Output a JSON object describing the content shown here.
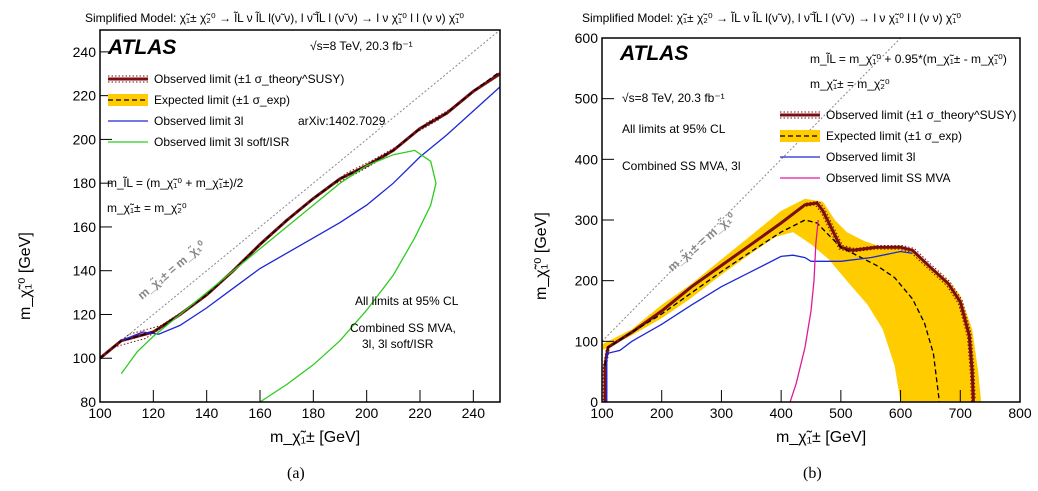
{
  "chart_data": [
    {
      "type": "line",
      "panel_label": "(a)",
      "title": "Simplified Model: χ̃₁± χ̃₂⁰ → l̃L ν l̃L l(ν̃ ν), l ν̃ l̃L l (ν̃ ν) → l ν χ̃₁⁰ l l (ν ν) χ̃₁⁰",
      "xlabel": "m_χ̃₁± [GeV]",
      "ylabel": "m_χ̃₁⁰ [GeV]",
      "xlim": [
        100,
        250
      ],
      "ylim": [
        80,
        250
      ],
      "x_ticks": [
        "100",
        "120",
        "140",
        "160",
        "180",
        "200",
        "220",
        "240"
      ],
      "y_ticks": [
        "80",
        "100",
        "120",
        "140",
        "160",
        "180",
        "200",
        "220",
        "240"
      ],
      "experiment": "ATLAS",
      "energy_lumi": "√s=8 TeV, 20.3 fb⁻¹",
      "legend": {
        "placement": "top-left",
        "entries": [
          {
            "label": "Observed limit (±1 σ_theory^SUSY)",
            "color": "#7a0e12"
          },
          {
            "label": "Expected limit (±1 σ_exp)",
            "color": "#ffcc00"
          },
          {
            "label": "Observed limit 3l",
            "color": "#1d27d6",
            "extra": "arXiv:1402.7029"
          },
          {
            "label": "Observed limit 3l soft/ISR",
            "color": "#2ecc1f"
          }
        ]
      },
      "annotations": {
        "mass_relation_1": "m_l̃L = (m_χ̃₁⁰ + m_χ̃₁±)/2",
        "mass_relation_2": "m_χ̃₁± = m_χ̃₂⁰",
        "cl": "All limits at 95% CL",
        "combo_1": "Combined SS MVA,",
        "combo_2": "3l, 3l soft/ISR",
        "diagonal": "m_χ̃₁± = m_χ̃₁⁰"
      },
      "series": [
        {
          "name": "Observed limit",
          "color": "#7a0e12",
          "points": [
            [
              100,
              100
            ],
            [
              108,
              108
            ],
            [
              120,
              112
            ],
            [
              130,
              120
            ],
            [
              140,
              129
            ],
            [
              150,
              140
            ],
            [
              160,
              152
            ],
            [
              170,
              163
            ],
            [
              180,
              173
            ],
            [
              190,
              182
            ],
            [
              200,
              188
            ],
            [
              210,
              195
            ],
            [
              220,
              205
            ],
            [
              230,
              212
            ],
            [
              240,
              222
            ],
            [
              250,
              230
            ]
          ]
        },
        {
          "name": "Expected limit",
          "color": "#000000",
          "points": [
            [
              100,
              100
            ],
            [
              108,
              108
            ],
            [
              120,
              112
            ],
            [
              130,
              120
            ],
            [
              140,
              129
            ],
            [
              150,
              140
            ],
            [
              160,
              152
            ],
            [
              170,
              163
            ],
            [
              180,
              173
            ],
            [
              190,
              182
            ],
            [
              200,
              188
            ],
            [
              210,
              195
            ],
            [
              220,
              205
            ],
            [
              230,
              212
            ],
            [
              240,
              222
            ],
            [
              250,
              231
            ]
          ]
        },
        {
          "name": "Observed limit 3l",
          "color": "#1d27d6",
          "points": [
            [
              108,
              108
            ],
            [
              116,
              112
            ],
            [
              122,
              111
            ],
            [
              130,
              115
            ],
            [
              140,
              123
            ],
            [
              150,
              132
            ],
            [
              160,
              141
            ],
            [
              170,
              148
            ],
            [
              180,
              155
            ],
            [
              190,
              162
            ],
            [
              200,
              170
            ],
            [
              210,
              180
            ],
            [
              220,
              192
            ],
            [
              230,
              202
            ],
            [
              240,
              213
            ],
            [
              250,
              224
            ]
          ]
        },
        {
          "name": "Observed limit 3l soft/ISR",
          "color": "#2ecc1f",
          "points": [
            [
              108,
              93
            ],
            [
              114,
              103
            ],
            [
              120,
              110
            ],
            [
              130,
              120
            ],
            [
              140,
              130
            ],
            [
              150,
              140
            ],
            [
              160,
              150
            ],
            [
              170,
              160
            ],
            [
              180,
              170
            ],
            [
              190,
              180
            ],
            [
              200,
              188
            ],
            [
              210,
              193
            ],
            [
              218,
              195
            ],
            [
              224,
              190
            ],
            [
              226,
              180
            ],
            [
              224,
              170
            ],
            [
              218,
              155
            ],
            [
              210,
              138
            ],
            [
              200,
              122
            ],
            [
              190,
              108
            ],
            [
              180,
              97
            ],
            [
              170,
              88
            ],
            [
              160,
              80
            ]
          ]
        }
      ]
    },
    {
      "type": "line",
      "panel_label": "(b)",
      "title": "Simplified Model: χ̃₁± χ̃₂⁰ → l̃L ν l̃L l(ν̃ ν), l ν̃ l̃L l (ν̃ ν) → l ν χ̃₁⁰ l l (ν ν) χ̃₁⁰",
      "xlabel": "m_χ̃₁± [GeV]",
      "ylabel": "m_χ̃₁⁰ [GeV]",
      "xlim": [
        100,
        800
      ],
      "ylim": [
        0,
        600
      ],
      "x_ticks": [
        "100",
        "200",
        "300",
        "400",
        "500",
        "600",
        "700",
        "800"
      ],
      "y_ticks": [
        "0",
        "100",
        "200",
        "300",
        "400",
        "500",
        "600"
      ],
      "experiment": "ATLAS",
      "energy_lumi": "√s=8 TeV, 20.3 fb⁻¹",
      "legend": {
        "placement": "top-right",
        "entries": [
          {
            "label": "Observed limit (±1 σ_theory^SUSY)",
            "color": "#7a0e12"
          },
          {
            "label": "Expected limit (±1 σ_exp)",
            "color": "#ffcc00"
          },
          {
            "label": "Observed limit 3l",
            "color": "#1d27d6"
          },
          {
            "label": "Observed limit SS MVA",
            "color": "#e0199a"
          }
        ]
      },
      "annotations": {
        "mass_relation_1": "m_l̃L = m_χ̃₁⁰ + 0.95*(m_χ̃₁± - m_χ̃₁⁰)",
        "mass_relation_2": "m_χ̃₁± = m_χ̃₂⁰",
        "cl": "All limits at 95% CL",
        "combo": "Combined SS MVA, 3l",
        "diagonal": "m_χ̃₁± = m_χ̃₁⁰"
      },
      "expected_band": {
        "upper": [
          [
            100,
            95
          ],
          [
            150,
            120
          ],
          [
            200,
            160
          ],
          [
            250,
            195
          ],
          [
            300,
            235
          ],
          [
            350,
            275
          ],
          [
            400,
            315
          ],
          [
            440,
            335
          ],
          [
            470,
            330
          ],
          [
            490,
            300
          ],
          [
            510,
            280
          ],
          [
            540,
            265
          ],
          [
            570,
            255
          ],
          [
            600,
            255
          ],
          [
            620,
            250
          ],
          [
            650,
            225
          ],
          [
            680,
            200
          ],
          [
            700,
            175
          ],
          [
            720,
            120
          ],
          [
            730,
            50
          ],
          [
            735,
            0
          ]
        ],
        "lower": [
          [
            660,
            0
          ],
          [
            640,
            0
          ],
          [
            600,
            0
          ],
          [
            590,
            60
          ],
          [
            570,
            120
          ],
          [
            545,
            160
          ],
          [
            510,
            200
          ],
          [
            480,
            235
          ],
          [
            450,
            260
          ],
          [
            420,
            280
          ],
          [
            390,
            272
          ],
          [
            350,
            245
          ],
          [
            300,
            210
          ],
          [
            250,
            172
          ],
          [
            200,
            138
          ],
          [
            150,
            110
          ],
          [
            100,
            85
          ]
        ]
      },
      "series": [
        {
          "name": "Observed limit",
          "color": "#7a0e12",
          "points": [
            [
              105,
              0
            ],
            [
              105,
              60
            ],
            [
              110,
              90
            ],
            [
              150,
              115
            ],
            [
              200,
              150
            ],
            [
              250,
              190
            ],
            [
              300,
              225
            ],
            [
              350,
              260
            ],
            [
              400,
              295
            ],
            [
              440,
              325
            ],
            [
              460,
              328
            ],
            [
              470,
              315
            ],
            [
              485,
              285
            ],
            [
              500,
              255
            ],
            [
              520,
              250
            ],
            [
              560,
              255
            ],
            [
              600,
              255
            ],
            [
              620,
              250
            ],
            [
              650,
              222
            ],
            [
              680,
              195
            ],
            [
              700,
              165
            ],
            [
              715,
              110
            ],
            [
              720,
              50
            ],
            [
              722,
              0
            ]
          ]
        },
        {
          "name": "Expected limit",
          "color": "#000000",
          "points": [
            [
              105,
              60
            ],
            [
              110,
              90
            ],
            [
              150,
              115
            ],
            [
              200,
              145
            ],
            [
              250,
              180
            ],
            [
              300,
              215
            ],
            [
              350,
              248
            ],
            [
              400,
              280
            ],
            [
              440,
              300
            ],
            [
              460,
              295
            ],
            [
              480,
              275
            ],
            [
              500,
              255
            ],
            [
              530,
              240
            ],
            [
              560,
              225
            ],
            [
              590,
              205
            ],
            [
              620,
              170
            ],
            [
              640,
              130
            ],
            [
              655,
              80
            ],
            [
              665,
              0
            ]
          ]
        },
        {
          "name": "Observed limit 3l",
          "color": "#1d27d6",
          "points": [
            [
              108,
              0
            ],
            [
              108,
              80
            ],
            [
              130,
              85
            ],
            [
              150,
              100
            ],
            [
              200,
              128
            ],
            [
              250,
              160
            ],
            [
              300,
              190
            ],
            [
              350,
              215
            ],
            [
              400,
              240
            ],
            [
              420,
              242
            ],
            [
              440,
              238
            ],
            [
              450,
              232
            ],
            [
              500,
              232
            ],
            [
              550,
              238
            ],
            [
              600,
              248
            ],
            [
              620,
              245
            ]
          ]
        },
        {
          "name": "Observed limit SS MVA",
          "color": "#e0199a",
          "points": [
            [
              415,
              0
            ],
            [
              425,
              30
            ],
            [
              440,
              90
            ],
            [
              450,
              150
            ],
            [
              455,
              200
            ],
            [
              458,
              260
            ],
            [
              462,
              300
            ]
          ]
        }
      ]
    }
  ]
}
